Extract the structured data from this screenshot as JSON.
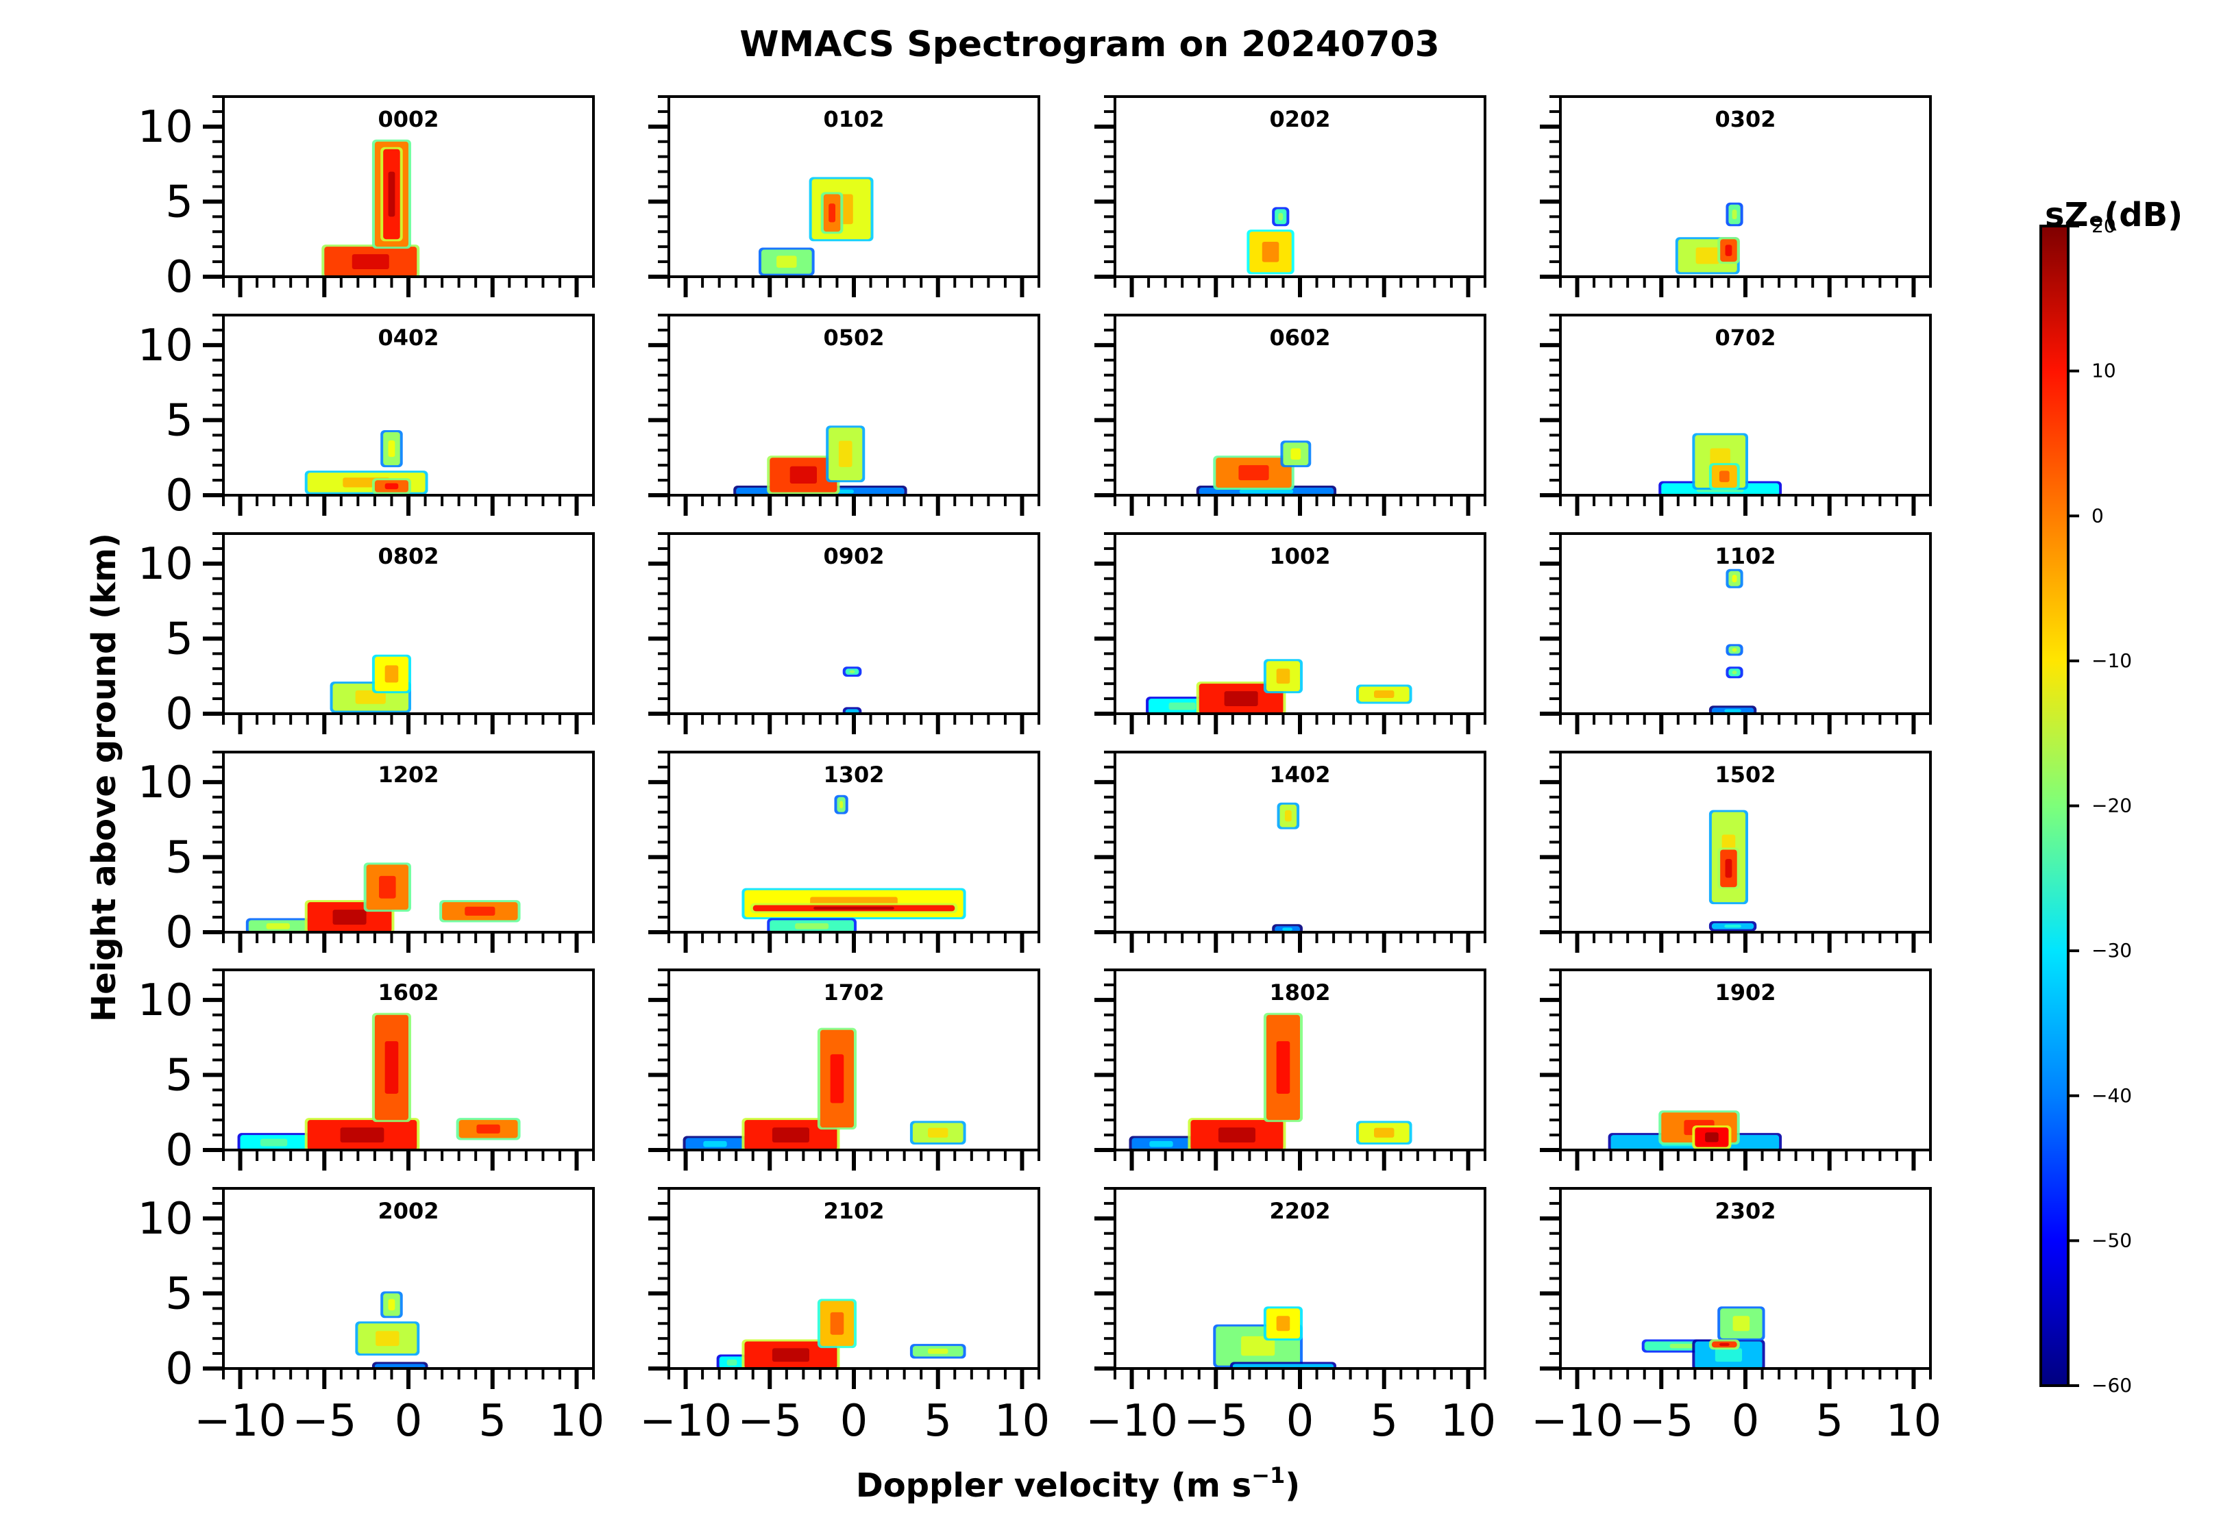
{
  "figure": {
    "title": "WMACS Spectrogram on 20240703",
    "xlabel_main": "Doppler velocity (m s",
    "xlabel_sup": "−1",
    "xlabel_tail": ")",
    "ylabel": "Height above ground (km)"
  },
  "colorbar": {
    "label": "sZₑ(dB)",
    "ticks": [
      "20",
      "10",
      "0",
      "−10",
      "−20",
      "−30",
      "−40",
      "−50",
      "−60"
    ],
    "colormap": "jet",
    "range": [
      -60,
      20
    ]
  },
  "axes": {
    "x_ticks": [
      "−10",
      "−5",
      "0",
      "5",
      "10"
    ],
    "y_ticks": [
      "0",
      "5",
      "10"
    ]
  },
  "chart_data": {
    "type": "heatmap",
    "title": "WMACS Spectrogram on 20240703",
    "xlabel": "Doppler velocity (m s⁻¹)",
    "ylabel": "Height above ground (km)",
    "xlim": [
      -11,
      11
    ],
    "ylim": [
      0,
      12
    ],
    "clim": [
      -60,
      20
    ],
    "grid": false,
    "panels": [
      {
        "label": "0002",
        "blobs": [
          {
            "x": [
              -5,
              0.5
            ],
            "y": [
              0,
              2
            ],
            "level": 5
          },
          {
            "x": [
              -2,
              0
            ],
            "y": [
              2,
              9
            ],
            "level": 0
          },
          {
            "x": [
              -1.5,
              -0.5
            ],
            "y": [
              2.5,
              8.5
            ],
            "level": 8
          }
        ]
      },
      {
        "label": "0102",
        "blobs": [
          {
            "x": [
              -5.5,
              -2.5
            ],
            "y": [
              0.2,
              1.8
            ],
            "level": -20
          },
          {
            "x": [
              -2.5,
              1
            ],
            "y": [
              2.5,
              6.5
            ],
            "level": -12
          },
          {
            "x": [
              -1.8,
              -0.8
            ],
            "y": [
              3,
              5.5
            ],
            "level": 0
          }
        ]
      },
      {
        "label": "0202",
        "blobs": [
          {
            "x": [
              -3,
              -0.5
            ],
            "y": [
              0.3,
              3
            ],
            "level": -8
          },
          {
            "x": [
              -1.5,
              -0.8
            ],
            "y": [
              3.5,
              4.5
            ],
            "level": -25
          }
        ]
      },
      {
        "label": "0302",
        "blobs": [
          {
            "x": [
              -4,
              -0.5
            ],
            "y": [
              0.3,
              2.5
            ],
            "level": -15
          },
          {
            "x": [
              -1.5,
              -0.5
            ],
            "y": [
              1,
              2.5
            ],
            "level": 3
          },
          {
            "x": [
              -1,
              -0.3
            ],
            "y": [
              3.5,
              4.8
            ],
            "level": -22
          }
        ]
      },
      {
        "label": "0402",
        "blobs": [
          {
            "x": [
              -6,
              1
            ],
            "y": [
              0.2,
              1.5
            ],
            "level": -12
          },
          {
            "x": [
              -1.5,
              -0.5
            ],
            "y": [
              2,
              4.2
            ],
            "level": -18
          },
          {
            "x": [
              -2,
              0
            ],
            "y": [
              0.2,
              1
            ],
            "level": 2
          }
        ]
      },
      {
        "label": "0502",
        "blobs": [
          {
            "x": [
              -7,
              3
            ],
            "y": [
              0,
              0.5
            ],
            "level": -40
          },
          {
            "x": [
              -5,
              -1
            ],
            "y": [
              0.2,
              2.5
            ],
            "level": 5
          },
          {
            "x": [
              -1.5,
              0.5
            ],
            "y": [
              1,
              4.5
            ],
            "level": -15
          }
        ]
      },
      {
        "label": "0602",
        "blobs": [
          {
            "x": [
              -6,
              2
            ],
            "y": [
              0,
              0.5
            ],
            "level": -40
          },
          {
            "x": [
              -5,
              -0.5
            ],
            "y": [
              0.5,
              2.5
            ],
            "level": 0
          },
          {
            "x": [
              -1,
              0.5
            ],
            "y": [
              2,
              3.5
            ],
            "level": -18
          }
        ]
      },
      {
        "label": "0702",
        "blobs": [
          {
            "x": [
              -5,
              2
            ],
            "y": [
              0,
              0.8
            ],
            "level": -30
          },
          {
            "x": [
              -3,
              0
            ],
            "y": [
              0.5,
              4
            ],
            "level": -15
          },
          {
            "x": [
              -2,
              -0.5
            ],
            "y": [
              0.5,
              2
            ],
            "level": -5
          }
        ]
      },
      {
        "label": "0802",
        "blobs": [
          {
            "x": [
              -4.5,
              0
            ],
            "y": [
              0.2,
              2
            ],
            "level": -15
          },
          {
            "x": [
              -2,
              0
            ],
            "y": [
              1.5,
              3.8
            ],
            "level": -10
          }
        ]
      },
      {
        "label": "0902",
        "blobs": [
          {
            "x": [
              -0.5,
              0.3
            ],
            "y": [
              2.6,
              3
            ],
            "level": -25
          },
          {
            "x": [
              -0.5,
              0.3
            ],
            "y": [
              0,
              0.3
            ],
            "level": -35
          }
        ]
      },
      {
        "label": "1002",
        "blobs": [
          {
            "x": [
              -9,
              -5
            ],
            "y": [
              0,
              1
            ],
            "level": -30
          },
          {
            "x": [
              -6,
              -1
            ],
            "y": [
              0,
              2
            ],
            "level": 8
          },
          {
            "x": [
              -2,
              0
            ],
            "y": [
              1.5,
              3.5
            ],
            "level": -12
          },
          {
            "x": [
              3.5,
              6.5
            ],
            "y": [
              0.8,
              1.8
            ],
            "level": -12
          }
        ]
      },
      {
        "label": "1102",
        "blobs": [
          {
            "x": [
              -1,
              -0.3
            ],
            "y": [
              8.5,
              9.5
            ],
            "level": -18
          },
          {
            "x": [
              -1,
              -0.3
            ],
            "y": [
              4,
              4.5
            ],
            "level": -20
          },
          {
            "x": [
              -1,
              -0.3
            ],
            "y": [
              2.5,
              3
            ],
            "level": -25
          },
          {
            "x": [
              -2,
              0.5
            ],
            "y": [
              0,
              0.4
            ],
            "level": -40
          }
        ]
      },
      {
        "label": "1202",
        "blobs": [
          {
            "x": [
              -9.5,
              -6
            ],
            "y": [
              0,
              0.8
            ],
            "level": -20
          },
          {
            "x": [
              -6,
              -1
            ],
            "y": [
              0,
              2
            ],
            "level": 8
          },
          {
            "x": [
              -2.5,
              0
            ],
            "y": [
              1.5,
              4.5
            ],
            "level": 0
          },
          {
            "x": [
              2,
              6.5
            ],
            "y": [
              0.8,
              2
            ],
            "level": 0
          }
        ]
      },
      {
        "label": "1302",
        "blobs": [
          {
            "x": [
              -6.5,
              6.5
            ],
            "y": [
              1,
              2.8
            ],
            "level": -10
          },
          {
            "x": [
              -6,
              6
            ],
            "y": [
              1.4,
              1.8
            ],
            "level": 8
          },
          {
            "x": [
              -1,
              -0.5
            ],
            "y": [
              8,
              9
            ],
            "level": -20
          },
          {
            "x": [
              -5,
              0
            ],
            "y": [
              0,
              0.8
            ],
            "level": -25
          }
        ]
      },
      {
        "label": "1402",
        "blobs": [
          {
            "x": [
              -1.2,
              -0.2
            ],
            "y": [
              7,
              8.5
            ],
            "level": -15
          },
          {
            "x": [
              -1.5,
              0
            ],
            "y": [
              0,
              0.4
            ],
            "level": -40
          }
        ]
      },
      {
        "label": "1502",
        "blobs": [
          {
            "x": [
              -2,
              0
            ],
            "y": [
              2,
              8
            ],
            "level": -15
          },
          {
            "x": [
              -1.5,
              -0.5
            ],
            "y": [
              3,
              5.5
            ],
            "level": 5
          },
          {
            "x": [
              -2,
              0.5
            ],
            "y": [
              0.2,
              0.6
            ],
            "level": -35
          }
        ]
      },
      {
        "label": "1602",
        "blobs": [
          {
            "x": [
              -10,
              -6
            ],
            "y": [
              0,
              1
            ],
            "level": -30
          },
          {
            "x": [
              -6,
              0.5
            ],
            "y": [
              0,
              2
            ],
            "level": 8
          },
          {
            "x": [
              -2,
              0
            ],
            "y": [
              2,
              9
            ],
            "level": 3
          },
          {
            "x": [
              3,
              6.5
            ],
            "y": [
              0.8,
              2
            ],
            "level": 0
          }
        ]
      },
      {
        "label": "1702",
        "blobs": [
          {
            "x": [
              -10,
              -6.5
            ],
            "y": [
              0,
              0.8
            ],
            "level": -40
          },
          {
            "x": [
              -6.5,
              -1
            ],
            "y": [
              0,
              2
            ],
            "level": 8
          },
          {
            "x": [
              -2,
              0
            ],
            "y": [
              1.5,
              8
            ],
            "level": 2
          },
          {
            "x": [
              3.5,
              6.5
            ],
            "y": [
              0.5,
              1.8
            ],
            "level": -15
          }
        ]
      },
      {
        "label": "1802",
        "blobs": [
          {
            "x": [
              -10,
              -6.5
            ],
            "y": [
              0,
              0.8
            ],
            "level": -40
          },
          {
            "x": [
              -6.5,
              -1
            ],
            "y": [
              0,
              2
            ],
            "level": 8
          },
          {
            "x": [
              -2,
              0
            ],
            "y": [
              2,
              9
            ],
            "level": 2
          },
          {
            "x": [
              3.5,
              6.5
            ],
            "y": [
              0.5,
              1.8
            ],
            "level": -12
          }
        ]
      },
      {
        "label": "1902",
        "blobs": [
          {
            "x": [
              -8,
              2
            ],
            "y": [
              0,
              1
            ],
            "level": -35
          },
          {
            "x": [
              -5,
              -0.5
            ],
            "y": [
              0.5,
              2.5
            ],
            "level": 0
          },
          {
            "x": [
              -3,
              -1
            ],
            "y": [
              0.2,
              1.5
            ],
            "level": 10
          }
        ]
      },
      {
        "label": "2002",
        "blobs": [
          {
            "x": [
              -3,
              0.5
            ],
            "y": [
              1,
              3
            ],
            "level": -15
          },
          {
            "x": [
              -1.5,
              -0.5
            ],
            "y": [
              3.5,
              5
            ],
            "level": -18
          },
          {
            "x": [
              -2,
              1
            ],
            "y": [
              0,
              0.3
            ],
            "level": -40
          }
        ]
      },
      {
        "label": "2102",
        "blobs": [
          {
            "x": [
              -8,
              -6.5
            ],
            "y": [
              0,
              0.8
            ],
            "level": -30
          },
          {
            "x": [
              -6.5,
              -1
            ],
            "y": [
              0,
              1.8
            ],
            "level": 8
          },
          {
            "x": [
              -2,
              0
            ],
            "y": [
              1.5,
              4.5
            ],
            "level": -5
          },
          {
            "x": [
              3.5,
              6.5
            ],
            "y": [
              0.8,
              1.5
            ],
            "level": -20
          }
        ]
      },
      {
        "label": "2202",
        "blobs": [
          {
            "x": [
              -5,
              0
            ],
            "y": [
              0.2,
              2.8
            ],
            "level": -20
          },
          {
            "x": [
              -2,
              0
            ],
            "y": [
              2,
              4
            ],
            "level": -10
          },
          {
            "x": [
              -4,
              2
            ],
            "y": [
              0,
              0.3
            ],
            "level": -35
          }
        ]
      },
      {
        "label": "2302",
        "blobs": [
          {
            "x": [
              -6,
              -1
            ],
            "y": [
              1.2,
              1.8
            ],
            "level": -25
          },
          {
            "x": [
              -3,
              1
            ],
            "y": [
              0,
              1.8
            ],
            "level": -35
          },
          {
            "x": [
              -1.5,
              1
            ],
            "y": [
              2,
              4
            ],
            "level": -20
          },
          {
            "x": [
              -2,
              -0.5
            ],
            "y": [
              1.4,
              1.8
            ],
            "level": 5
          }
        ]
      }
    ]
  }
}
